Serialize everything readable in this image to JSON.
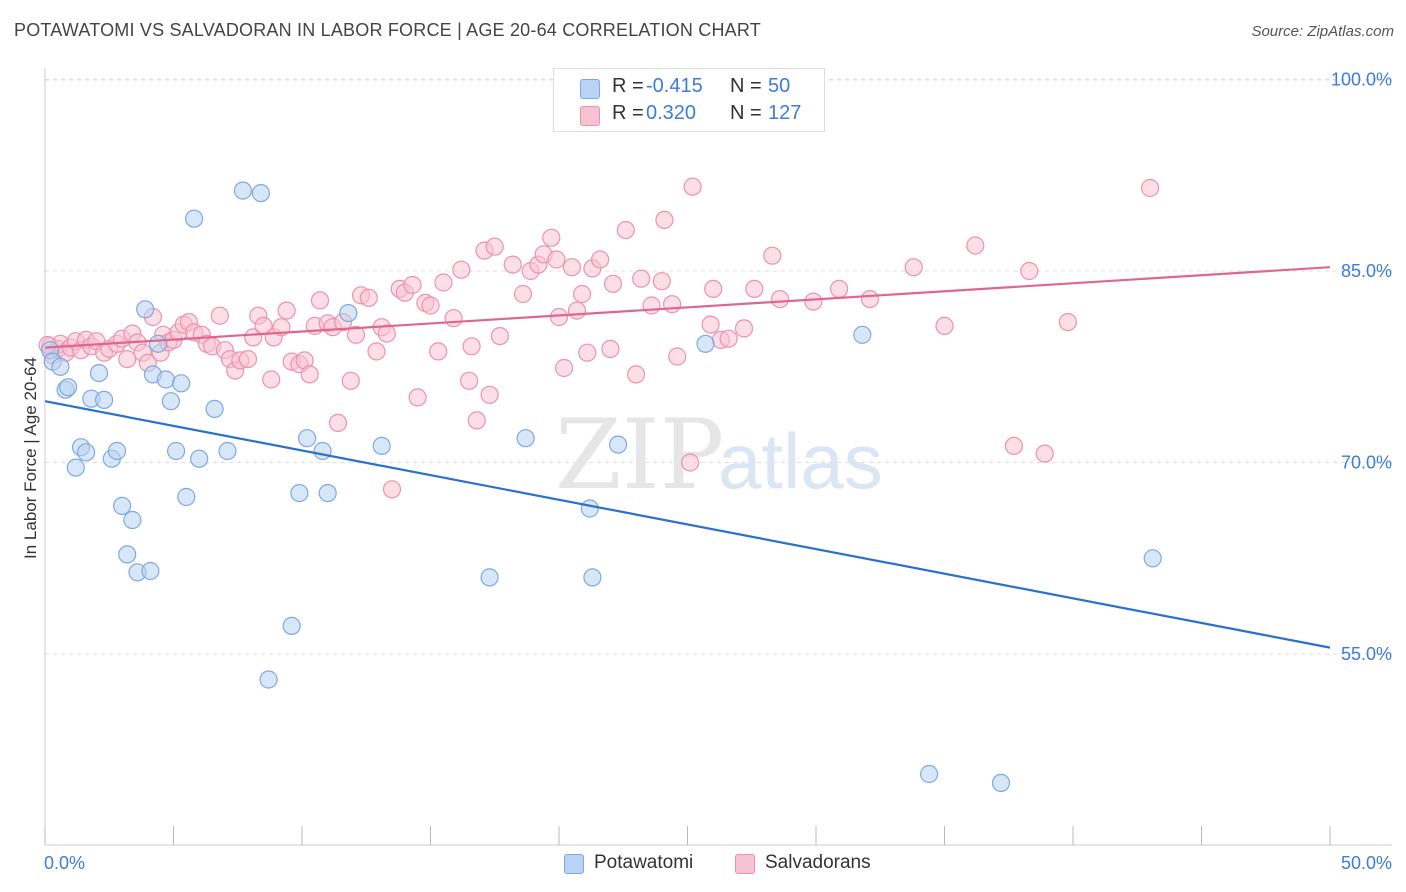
{
  "title": "POTAWATOMI VS SALVADORAN IN LABOR FORCE | AGE 20-64 CORRELATION CHART",
  "source": "Source: ZipAtlas.com",
  "watermark": {
    "zip": "ZIP",
    "atlas": "atlas"
  },
  "colors": {
    "blue_fill": "#b8d3f3",
    "blue_stroke": "#7ea9dd",
    "blue_line": "#2b6fcf",
    "pink_fill": "#f7c2d2",
    "pink_stroke": "#ec92ae",
    "pink_line": "#e0668f",
    "tick_label": "#3b7dd8",
    "grid": "#dddddd"
  },
  "legend": {
    "rows": [
      {
        "r_label": "R =",
        "r_value": "-0.415",
        "n_label": "N =",
        "n_value": "50",
        "swatch": "#b8d3f3"
      },
      {
        "r_label": "R =",
        "r_value": "0.320",
        "n_label": "N =",
        "n_value": "127",
        "swatch": "#f7c2d2"
      }
    ]
  },
  "chart_data": {
    "type": "scatter",
    "title": "POTAWATOMI VS SALVADORAN IN LABOR FORCE | AGE 20-64 CORRELATION CHART",
    "xlabel": "",
    "ylabel": "In Labor Force | Age 20-64",
    "xlim": [
      0,
      50
    ],
    "ylim": [
      40,
      102
    ],
    "x_tick_labels": [
      "0.0%",
      "50.0%"
    ],
    "y_ticks": [
      55,
      70,
      85,
      100
    ],
    "y_tick_labels": [
      "55.0%",
      "70.0%",
      "85.0%",
      "100.0%"
    ],
    "grid": true,
    "legend_position": "top-center",
    "series": [
      {
        "name": "Potawatomi",
        "color": "#b8d3f3",
        "r": -0.415,
        "n": 50,
        "trend": {
          "x": [
            0,
            50
          ],
          "y": [
            74.8,
            55.5
          ]
        },
        "points": [
          [
            0.2,
            78.8
          ],
          [
            0.3,
            77.9
          ],
          [
            0.6,
            77.5
          ],
          [
            0.8,
            75.7
          ],
          [
            0.9,
            75.9
          ],
          [
            1.2,
            69.6
          ],
          [
            1.4,
            71.2
          ],
          [
            1.6,
            70.8
          ],
          [
            1.8,
            75.0
          ],
          [
            2.1,
            77.0
          ],
          [
            2.3,
            74.9
          ],
          [
            2.6,
            70.3
          ],
          [
            2.8,
            70.9
          ],
          [
            3.0,
            66.6
          ],
          [
            3.2,
            62.8
          ],
          [
            3.4,
            65.5
          ],
          [
            3.6,
            61.4
          ],
          [
            3.9,
            82.0
          ],
          [
            4.1,
            61.5
          ],
          [
            4.2,
            76.9
          ],
          [
            4.4,
            79.3
          ],
          [
            4.7,
            76.5
          ],
          [
            4.9,
            74.8
          ],
          [
            5.1,
            70.9
          ],
          [
            5.3,
            76.2
          ],
          [
            5.5,
            67.3
          ],
          [
            5.8,
            89.1
          ],
          [
            6.0,
            70.3
          ],
          [
            6.6,
            74.2
          ],
          [
            7.1,
            70.9
          ],
          [
            7.7,
            91.3
          ],
          [
            8.4,
            91.1
          ],
          [
            8.7,
            53.0
          ],
          [
            9.6,
            57.2
          ],
          [
            9.9,
            67.6
          ],
          [
            10.2,
            71.9
          ],
          [
            10.8,
            70.9
          ],
          [
            11.0,
            67.6
          ],
          [
            11.8,
            81.7
          ],
          [
            13.1,
            71.3
          ],
          [
            17.3,
            61.0
          ],
          [
            18.7,
            71.9
          ],
          [
            21.2,
            66.4
          ],
          [
            21.3,
            61.0
          ],
          [
            22.3,
            71.4
          ],
          [
            25.7,
            79.3
          ],
          [
            31.8,
            80.0
          ],
          [
            34.4,
            45.6
          ],
          [
            37.2,
            44.9
          ],
          [
            43.1,
            62.5
          ]
        ]
      },
      {
        "name": "Salvadorans",
        "color": "#f7c2d2",
        "r": 0.32,
        "n": 127,
        "trend": {
          "x": [
            0,
            50
          ],
          "y": [
            79.0,
            85.3
          ]
        },
        "points": [
          [
            0.2,
            79.1
          ],
          [
            0.3,
            78.4
          ],
          [
            0.5,
            78.9
          ],
          [
            0.6,
            79.3
          ],
          [
            0.8,
            78.6
          ],
          [
            1.0,
            79.0
          ],
          [
            1.2,
            79.5
          ],
          [
            1.4,
            78.8
          ],
          [
            1.6,
            79.6
          ],
          [
            1.8,
            79.1
          ],
          [
            2.0,
            79.5
          ],
          [
            2.3,
            78.6
          ],
          [
            2.5,
            78.9
          ],
          [
            2.8,
            79.3
          ],
          [
            3.0,
            79.7
          ],
          [
            3.2,
            78.1
          ],
          [
            3.4,
            80.1
          ],
          [
            3.6,
            79.4
          ],
          [
            3.8,
            78.6
          ],
          [
            4.0,
            77.8
          ],
          [
            4.2,
            81.4
          ],
          [
            4.5,
            78.6
          ],
          [
            4.6,
            80.0
          ],
          [
            4.8,
            79.4
          ],
          [
            5.0,
            79.6
          ],
          [
            5.2,
            80.2
          ],
          [
            5.4,
            80.8
          ],
          [
            5.6,
            81.0
          ],
          [
            5.8,
            80.2
          ],
          [
            6.1,
            80.0
          ],
          [
            6.3,
            79.3
          ],
          [
            6.5,
            79.1
          ],
          [
            6.8,
            81.5
          ],
          [
            7.0,
            78.8
          ],
          [
            7.2,
            78.1
          ],
          [
            7.4,
            77.2
          ],
          [
            7.6,
            78.0
          ],
          [
            7.9,
            78.1
          ],
          [
            8.1,
            79.8
          ],
          [
            8.3,
            81.5
          ],
          [
            8.5,
            80.7
          ],
          [
            8.8,
            76.5
          ],
          [
            8.9,
            79.8
          ],
          [
            9.2,
            80.6
          ],
          [
            9.4,
            81.9
          ],
          [
            9.6,
            77.9
          ],
          [
            9.9,
            77.7
          ],
          [
            10.1,
            78.0
          ],
          [
            10.3,
            76.9
          ],
          [
            10.5,
            80.7
          ],
          [
            10.7,
            82.7
          ],
          [
            11.0,
            80.9
          ],
          [
            11.2,
            80.6
          ],
          [
            11.4,
            73.1
          ],
          [
            11.6,
            81.0
          ],
          [
            11.9,
            76.4
          ],
          [
            12.1,
            80.0
          ],
          [
            12.3,
            83.1
          ],
          [
            12.6,
            82.9
          ],
          [
            12.9,
            78.7
          ],
          [
            13.1,
            80.6
          ],
          [
            13.3,
            80.1
          ],
          [
            13.5,
            67.9
          ],
          [
            13.8,
            83.6
          ],
          [
            14.0,
            83.3
          ],
          [
            14.3,
            83.9
          ],
          [
            14.5,
            75.1
          ],
          [
            14.8,
            82.5
          ],
          [
            15.0,
            82.3
          ],
          [
            15.3,
            78.7
          ],
          [
            15.5,
            84.1
          ],
          [
            15.9,
            81.3
          ],
          [
            16.2,
            85.1
          ],
          [
            16.5,
            76.4
          ],
          [
            16.6,
            79.1
          ],
          [
            16.8,
            73.3
          ],
          [
            17.1,
            86.6
          ],
          [
            17.3,
            75.3
          ],
          [
            17.5,
            86.9
          ],
          [
            17.7,
            79.9
          ],
          [
            18.2,
            85.5
          ],
          [
            18.6,
            83.2
          ],
          [
            18.9,
            85.0
          ],
          [
            19.2,
            85.5
          ],
          [
            19.4,
            86.3
          ],
          [
            19.7,
            87.6
          ],
          [
            19.9,
            85.9
          ],
          [
            20.0,
            81.4
          ],
          [
            20.2,
            77.4
          ],
          [
            20.5,
            85.3
          ],
          [
            20.7,
            81.9
          ],
          [
            20.9,
            83.2
          ],
          [
            21.1,
            78.6
          ],
          [
            21.3,
            85.2
          ],
          [
            21.6,
            85.9
          ],
          [
            22.0,
            78.9
          ],
          [
            22.1,
            84.0
          ],
          [
            22.6,
            88.2
          ],
          [
            23.0,
            76.9
          ],
          [
            23.2,
            84.4
          ],
          [
            23.6,
            82.3
          ],
          [
            24.0,
            84.2
          ],
          [
            24.1,
            89.0
          ],
          [
            24.4,
            82.4
          ],
          [
            24.6,
            78.3
          ],
          [
            25.1,
            70.0
          ],
          [
            25.2,
            91.6
          ],
          [
            25.9,
            80.8
          ],
          [
            26.0,
            83.6
          ],
          [
            26.3,
            79.6
          ],
          [
            26.6,
            79.7
          ],
          [
            27.2,
            80.5
          ],
          [
            27.6,
            83.6
          ],
          [
            28.3,
            86.2
          ],
          [
            28.6,
            82.8
          ],
          [
            29.9,
            82.6
          ],
          [
            30.9,
            83.6
          ],
          [
            32.1,
            82.8
          ],
          [
            33.8,
            85.3
          ],
          [
            35.0,
            80.7
          ],
          [
            36.2,
            87.0
          ],
          [
            37.7,
            71.3
          ],
          [
            38.3,
            85.0
          ],
          [
            38.9,
            70.7
          ],
          [
            39.8,
            81.0
          ],
          [
            43.0,
            91.5
          ],
          [
            0.1,
            79.2
          ]
        ]
      }
    ]
  },
  "bottom_legend": [
    {
      "label": "Potawatomi",
      "swatch": "#b8d3f3"
    },
    {
      "label": "Salvadorans",
      "swatch": "#f7c2d2"
    }
  ]
}
